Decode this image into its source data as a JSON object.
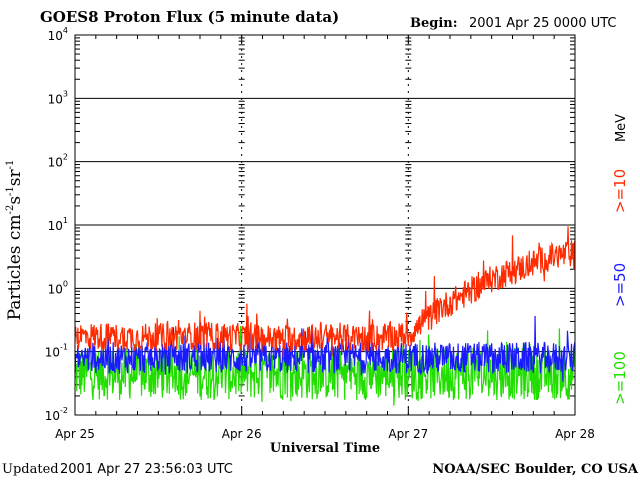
{
  "header": {
    "title": "GOES8 Proton Flux (5 minute data)",
    "begin_label": "Begin:",
    "begin_value": "2001 Apr 25 0000 UTC"
  },
  "footer": {
    "updated_label": "Updated",
    "updated_value": "2001 Apr 27 23:56:03 UTC",
    "credit": "NOAA/SEC Boulder, CO USA"
  },
  "chart_data": {
    "type": "line",
    "title": "GOES8 Proton Flux (5 minute data)",
    "xlabel": "Universal Time",
    "ylabel": "Particles cm-2s-1sr-1",
    "y_scale": "log",
    "ylim": [
      0.01,
      10000
    ],
    "y_ticks": [
      {
        "base": "10",
        "exp": "-2"
      },
      {
        "base": "10",
        "exp": "-1"
      },
      {
        "base": "10",
        "exp": "0"
      },
      {
        "base": "10",
        "exp": "1"
      },
      {
        "base": "10",
        "exp": "2"
      },
      {
        "base": "10",
        "exp": "3"
      },
      {
        "base": "10",
        "exp": "4"
      }
    ],
    "x_ticks": [
      "Apr 25",
      "Apr 26",
      "Apr 27",
      "Apr 28"
    ],
    "xlim_days": [
      0,
      3
    ],
    "grid": true,
    "unit_label": "MeV",
    "series": [
      {
        "name": ">=10",
        "color": "#ff2a00",
        "x_days": [
          0,
          0.25,
          0.5,
          0.75,
          1.0,
          1.25,
          1.5,
          1.75,
          2.0,
          2.1,
          2.2,
          2.3,
          2.4,
          2.5,
          2.6,
          2.7,
          2.8,
          2.9,
          3.0
        ],
        "values": [
          0.18,
          0.17,
          0.17,
          0.18,
          0.17,
          0.16,
          0.17,
          0.16,
          0.18,
          0.3,
          0.5,
          0.7,
          1.0,
          1.4,
          1.8,
          2.2,
          2.8,
          3.3,
          3.6
        ]
      },
      {
        "name": ">=50",
        "color": "#1a1aff",
        "x_days": [
          0,
          0.5,
          1.0,
          1.5,
          2.0,
          2.5,
          3.0
        ],
        "values": [
          0.08,
          0.08,
          0.08,
          0.08,
          0.08,
          0.08,
          0.08
        ]
      },
      {
        "name": ">=100",
        "color": "#22dd00",
        "x_days": [
          0,
          0.5,
          1.0,
          1.5,
          2.0,
          2.5,
          3.0
        ],
        "values": [
          0.045,
          0.045,
          0.045,
          0.045,
          0.045,
          0.045,
          0.045
        ]
      }
    ]
  }
}
